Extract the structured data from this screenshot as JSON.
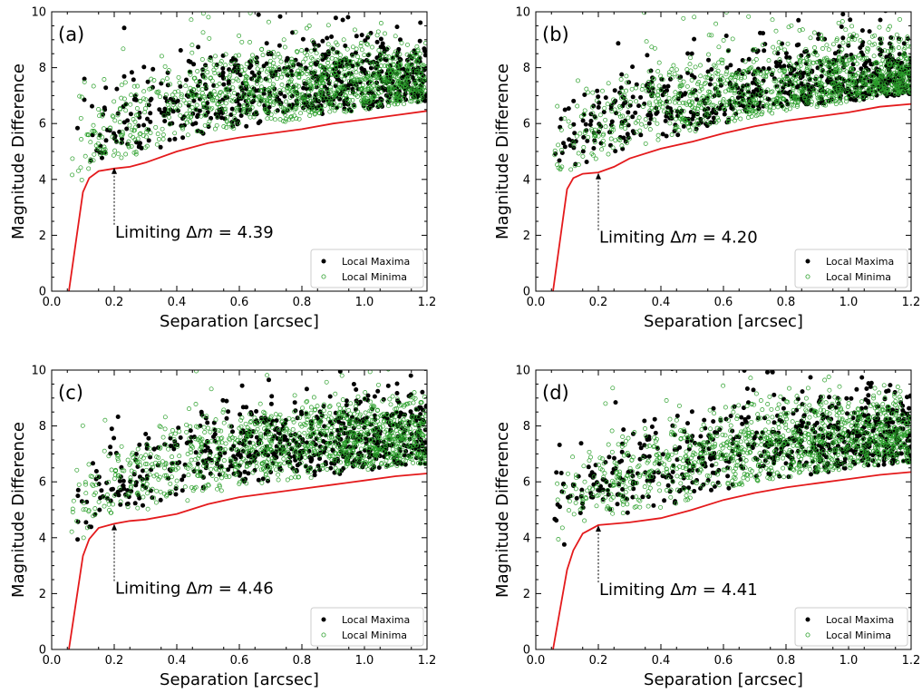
{
  "chart_data": [
    {
      "panel": "(a)",
      "type": "scatter",
      "xlabel": "Separation [arcsec]",
      "ylabel": "Magnitude Difference",
      "xlim": [
        0.0,
        1.2
      ],
      "ylim": [
        0,
        10
      ],
      "xticks": [
        "0.0",
        "0.2",
        "0.4",
        "0.6",
        "0.8",
        "1.0",
        "1.2"
      ],
      "yticks": [
        "0",
        "2",
        "4",
        "6",
        "8",
        "10"
      ],
      "legend": {
        "placement": "lower-right",
        "entries": [
          "Local Maxima",
          "Local Minima"
        ]
      },
      "annotation": {
        "prefix": "Limiting ",
        "delta": "Δ",
        "m": "m",
        "suffix": " = 4.39",
        "x": 0.2,
        "y": 4.39
      },
      "seed": 11,
      "curve": {
        "name": "contrast curve",
        "color": "#e41a1c",
        "x": [
          0.055,
          0.1,
          0.12,
          0.15,
          0.2,
          0.25,
          0.3,
          0.4,
          0.5,
          0.6,
          0.7,
          0.8,
          0.9,
          1.0,
          1.1,
          1.2
        ],
        "y": [
          0,
          3.55,
          4.05,
          4.3,
          4.39,
          4.45,
          4.6,
          5.0,
          5.3,
          5.5,
          5.65,
          5.8,
          6.0,
          6.15,
          6.3,
          6.45
        ]
      },
      "series": [
        {
          "name": "Local Maxima",
          "color": "#000000",
          "marker": "filled-circle",
          "count": 650
        },
        {
          "name": "Local Minima",
          "color": "#2ca02c",
          "marker": "open-circle",
          "count": 1100
        }
      ]
    },
    {
      "panel": "(b)",
      "type": "scatter",
      "xlabel": "Separation [arcsec]",
      "ylabel": "Magnitude Difference",
      "xlim": [
        0.0,
        1.2
      ],
      "ylim": [
        0,
        10
      ],
      "xticks": [
        "0.0",
        "0.2",
        "0.4",
        "0.6",
        "0.8",
        "1.0",
        "1.2"
      ],
      "yticks": [
        "0",
        "2",
        "4",
        "6",
        "8",
        "10"
      ],
      "legend": {
        "placement": "lower-right",
        "entries": [
          "Local Maxima",
          "Local Minima"
        ]
      },
      "annotation": {
        "prefix": "Limiting ",
        "delta": "Δ",
        "m": "m",
        "suffix": " = 4.20",
        "x": 0.2,
        "y": 4.2
      },
      "seed": 23,
      "curve": {
        "name": "contrast curve",
        "color": "#e41a1c",
        "x": [
          0.055,
          0.1,
          0.12,
          0.15,
          0.2,
          0.25,
          0.3,
          0.4,
          0.5,
          0.6,
          0.7,
          0.8,
          0.9,
          1.0,
          1.1,
          1.2
        ],
        "y": [
          0,
          3.65,
          4.05,
          4.2,
          4.25,
          4.45,
          4.75,
          5.1,
          5.35,
          5.65,
          5.9,
          6.1,
          6.25,
          6.4,
          6.6,
          6.7
        ]
      },
      "series": [
        {
          "name": "Local Maxima",
          "color": "#000000",
          "marker": "filled-circle",
          "count": 650
        },
        {
          "name": "Local Minima",
          "color": "#2ca02c",
          "marker": "open-circle",
          "count": 1100
        }
      ]
    },
    {
      "panel": "(c)",
      "type": "scatter",
      "xlabel": "Separation [arcsec]",
      "ylabel": "Magnitude Difference",
      "xlim": [
        0.0,
        1.2
      ],
      "ylim": [
        0,
        10
      ],
      "xticks": [
        "0.0",
        "0.2",
        "0.4",
        "0.6",
        "0.8",
        "1.0",
        "1.2"
      ],
      "yticks": [
        "0",
        "2",
        "4",
        "6",
        "8",
        "10"
      ],
      "legend": {
        "placement": "lower-right",
        "entries": [
          "Local Maxima",
          "Local Minima"
        ]
      },
      "annotation": {
        "prefix": "Limiting ",
        "delta": "Δ",
        "m": "m",
        "suffix": " = 4.46",
        "x": 0.2,
        "y": 4.46
      },
      "seed": 37,
      "curve": {
        "name": "contrast curve",
        "color": "#e41a1c",
        "x": [
          0.055,
          0.1,
          0.12,
          0.15,
          0.2,
          0.25,
          0.3,
          0.4,
          0.5,
          0.6,
          0.7,
          0.8,
          0.9,
          1.0,
          1.1,
          1.2
        ],
        "y": [
          0,
          3.35,
          3.95,
          4.35,
          4.5,
          4.6,
          4.65,
          4.85,
          5.2,
          5.45,
          5.6,
          5.75,
          5.9,
          6.05,
          6.2,
          6.3
        ]
      },
      "series": [
        {
          "name": "Local Maxima",
          "color": "#000000",
          "marker": "filled-circle",
          "count": 650
        },
        {
          "name": "Local Minima",
          "color": "#2ca02c",
          "marker": "open-circle",
          "count": 1100
        }
      ]
    },
    {
      "panel": "(d)",
      "type": "scatter",
      "xlabel": "Separation [arcsec]",
      "ylabel": "Magnitude Difference",
      "xlim": [
        0.0,
        1.2
      ],
      "ylim": [
        0,
        10
      ],
      "xticks": [
        "0.0",
        "0.2",
        "0.4",
        "0.6",
        "0.8",
        "1.0",
        "1.2"
      ],
      "yticks": [
        "0",
        "2",
        "4",
        "6",
        "8",
        "10"
      ],
      "legend": {
        "placement": "lower-right",
        "entries": [
          "Local Maxima",
          "Local Minima"
        ]
      },
      "annotation": {
        "prefix": "Limiting ",
        "delta": "Δ",
        "m": "m",
        "suffix": " = 4.41",
        "x": 0.2,
        "y": 4.41
      },
      "seed": 53,
      "curve": {
        "name": "contrast curve",
        "color": "#e41a1c",
        "x": [
          0.055,
          0.1,
          0.12,
          0.15,
          0.2,
          0.25,
          0.3,
          0.4,
          0.5,
          0.6,
          0.7,
          0.8,
          0.9,
          1.0,
          1.1,
          1.2
        ],
        "y": [
          0,
          2.85,
          3.55,
          4.15,
          4.45,
          4.5,
          4.55,
          4.7,
          5.0,
          5.35,
          5.6,
          5.8,
          5.95,
          6.1,
          6.25,
          6.35
        ]
      },
      "series": [
        {
          "name": "Local Maxima",
          "color": "#000000",
          "marker": "filled-circle",
          "count": 650
        },
        {
          "name": "Local Minima",
          "color": "#2ca02c",
          "marker": "open-circle",
          "count": 1100
        }
      ]
    }
  ]
}
